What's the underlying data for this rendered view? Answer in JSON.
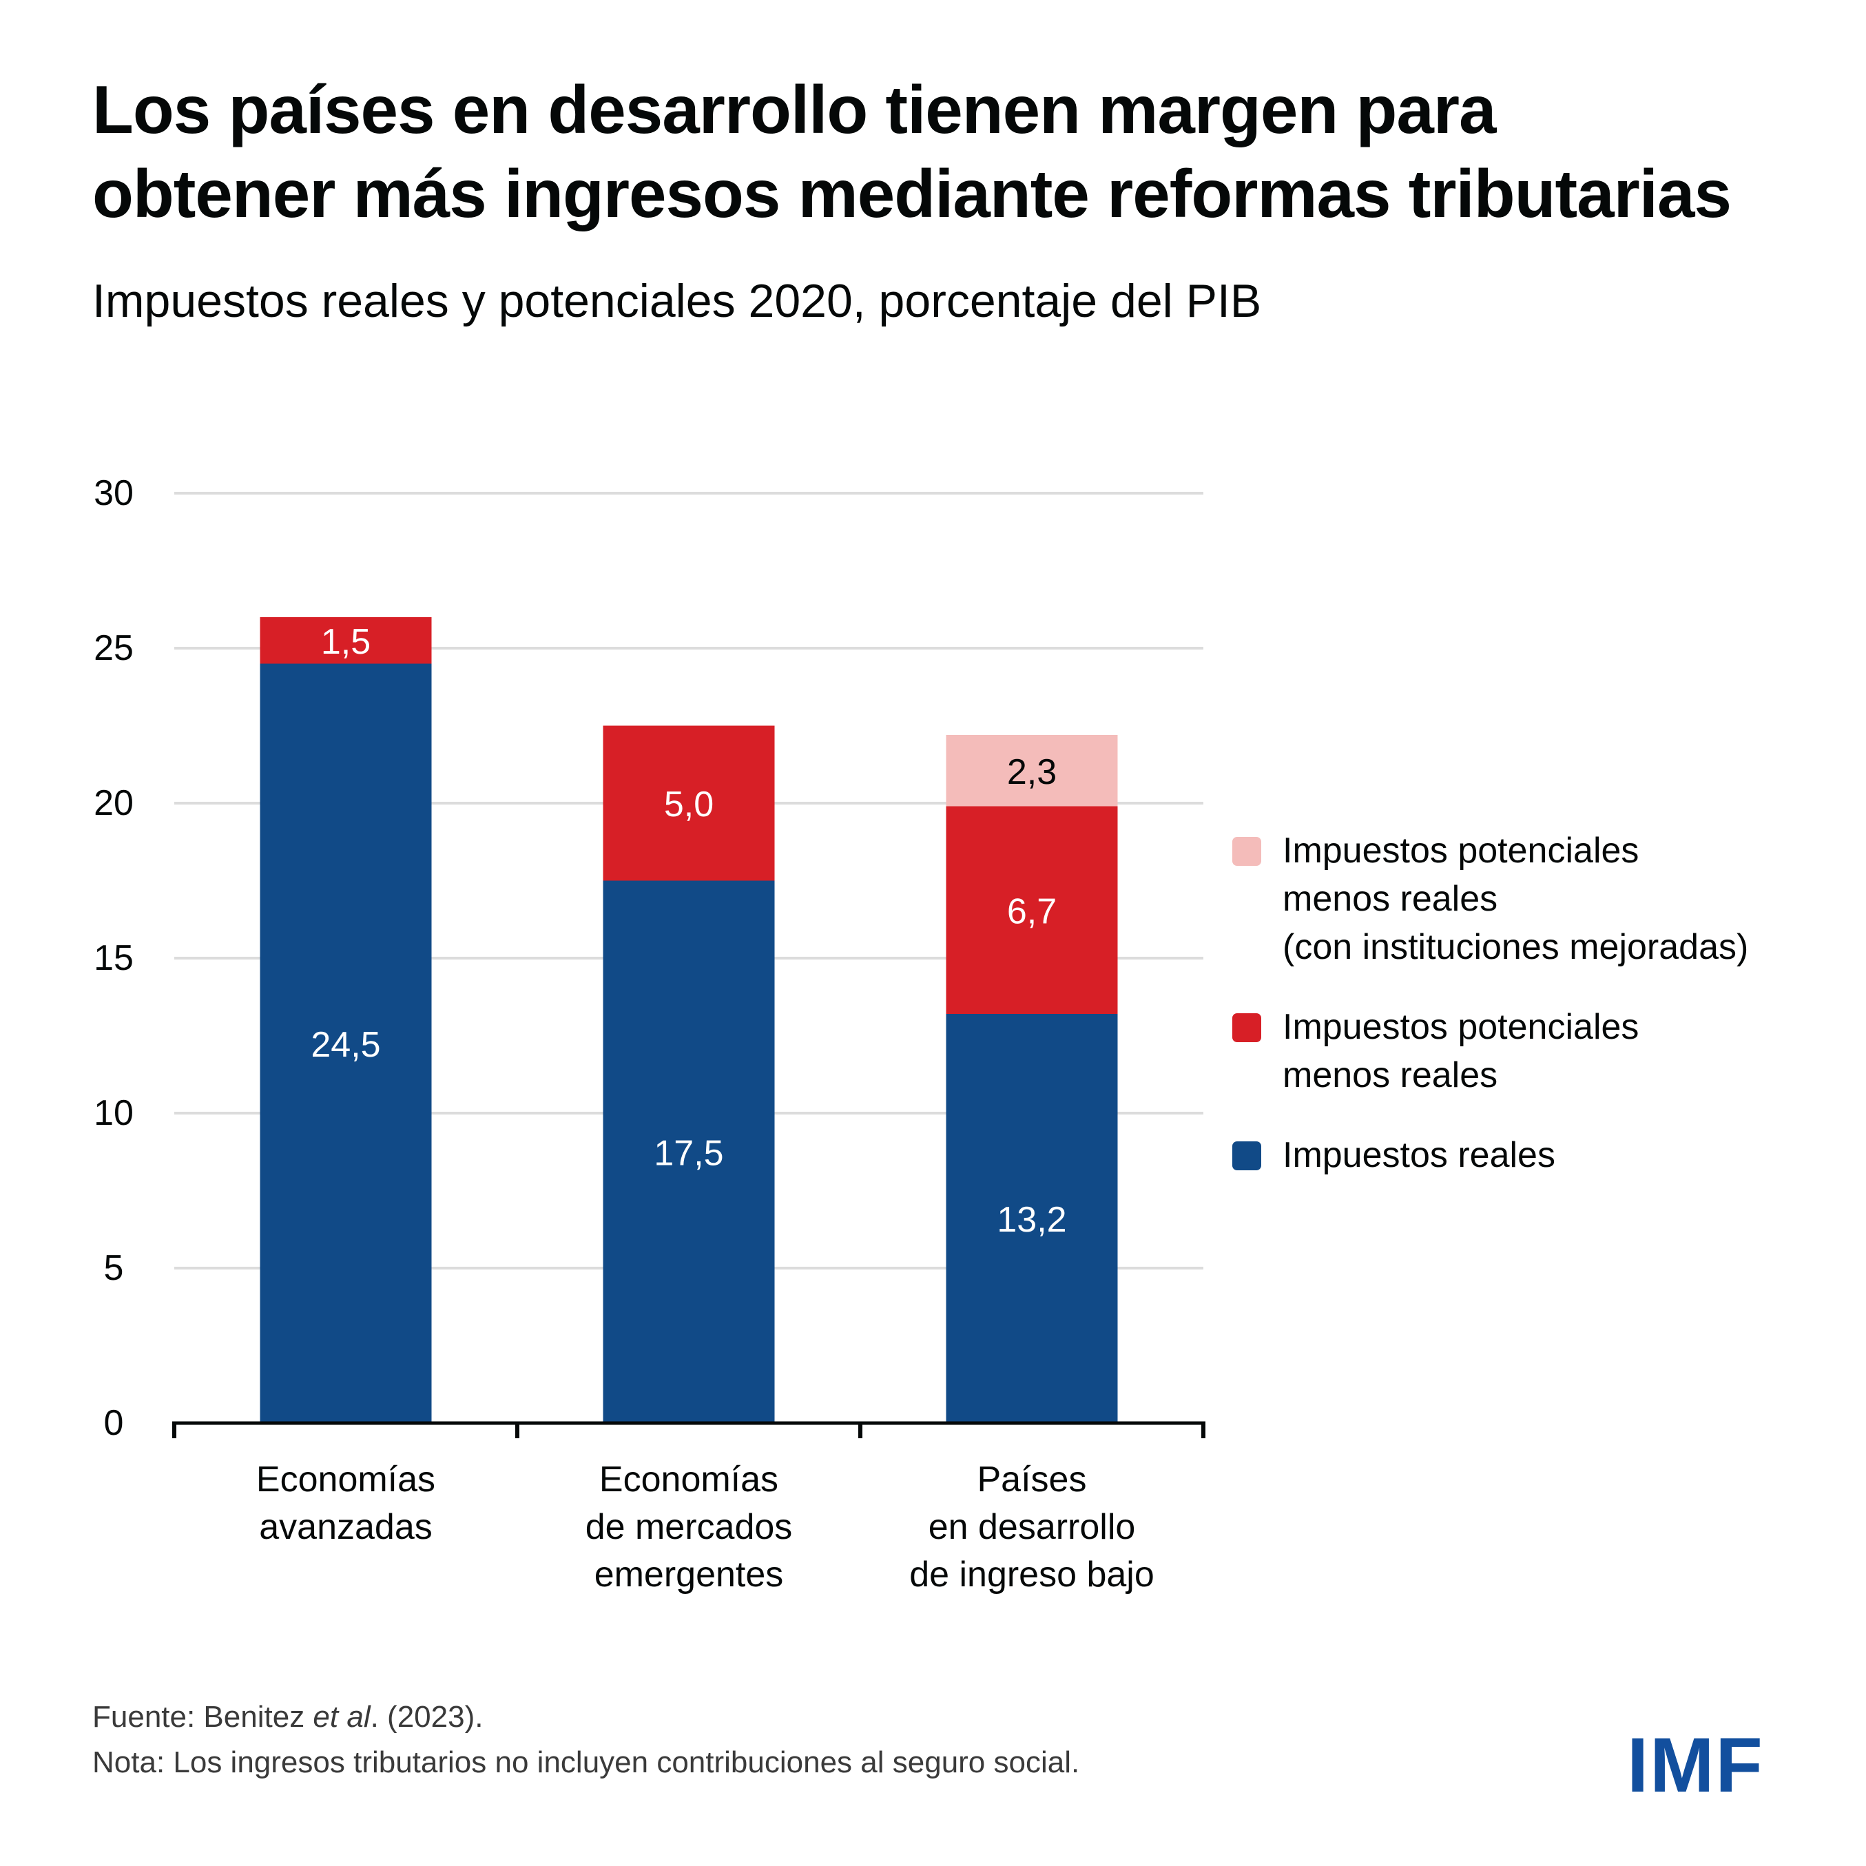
{
  "title_lines": [
    "Los países en desarrollo tienen margen para",
    "obtener más ingresos mediante reformas tributarias"
  ],
  "subtitle": "Impuestos reales y potenciales 2020, porcentaje del PIB",
  "colors": {
    "actual": "#114A87",
    "potential_minus_actual": "#D71F26",
    "potential_improved": "#F4BCBA",
    "gridline": "#DCDCDC",
    "axis": "#050808",
    "logo": "#124F9E"
  },
  "chart_data": {
    "type": "bar",
    "stacked": true,
    "title": "Los países en desarrollo tienen margen para obtener más ingresos mediante reformas tributarias",
    "subtitle": "Impuestos reales y potenciales 2020, porcentaje del PIB",
    "xlabel": "",
    "ylabel": "",
    "ylim": [
      0,
      30
    ],
    "yticks": [
      0,
      5,
      10,
      15,
      20,
      25,
      30
    ],
    "grid": true,
    "legend_position": "right",
    "categories": [
      [
        "Economías",
        "avanzadas"
      ],
      [
        "Economías",
        "de mercados",
        "emergentes"
      ],
      [
        "Países",
        "en desarrollo",
        "de ingreso bajo"
      ]
    ],
    "series": [
      {
        "name": "Impuestos reales",
        "color": "#114A87",
        "label_color": "#ffffff",
        "values": [
          24.5,
          17.5,
          13.2
        ],
        "labels": [
          "24,5",
          "17,5",
          "13,2"
        ]
      },
      {
        "name": "Impuestos potenciales menos reales",
        "color": "#D71F26",
        "label_color": "#ffffff",
        "values": [
          1.5,
          5.0,
          6.7
        ],
        "labels": [
          "1,5",
          "5,0",
          "6,7"
        ]
      },
      {
        "name": "Impuestos potenciales menos reales (con instituciones mejoradas)",
        "color": "#F4BCBA",
        "label_color": "#050808",
        "values": [
          0,
          0,
          2.3
        ],
        "labels": [
          "",
          "",
          "2,3"
        ]
      }
    ]
  },
  "legend": [
    {
      "label": "Impuestos potenciales\nmenos reales\n(con instituciones mejoradas)",
      "color": "#F4BCBA"
    },
    {
      "label": "Impuestos potenciales\nmenos reales",
      "color": "#D71F26"
    },
    {
      "label": "Impuestos reales",
      "color": "#114A87"
    }
  ],
  "footer": {
    "source_prefix": "Fuente: Benitez ",
    "source_italic": "et al",
    "source_suffix": ". (2023).",
    "note": "Nota: Los ingresos tributarios no incluyen contribuciones al seguro social."
  },
  "logo_text": "IMF"
}
